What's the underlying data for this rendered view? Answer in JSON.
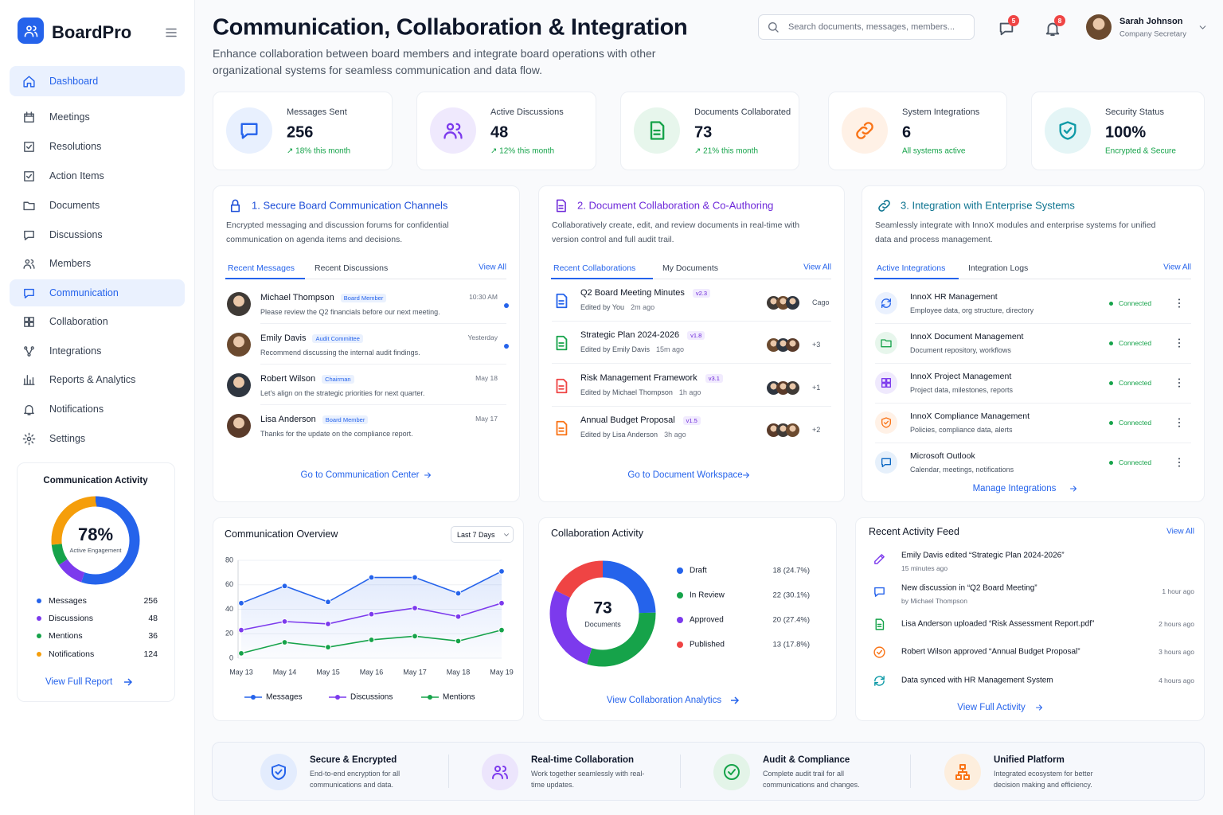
{
  "sidebar": {
    "brand": "BoardPro",
    "nav": [
      "Dashboard",
      "Meetings",
      "Resolutions",
      "Action Items",
      "Documents",
      "Discussions",
      "Members",
      "Communication",
      "Collaboration",
      "Integrations",
      "Reports & Analytics",
      "Notifications",
      "Settings"
    ]
  },
  "activity_widget": {
    "title": "Communication Activity",
    "center": "78%",
    "caption": "Active Engagement",
    "items": [
      {
        "name": "Messages",
        "value": 256,
        "color": "#2563eb"
      },
      {
        "name": "Discussions",
        "value": 48,
        "color": "#7c3aed"
      },
      {
        "name": "Mentions",
        "value": 36,
        "color": "#16a34a"
      },
      {
        "name": "Notifications",
        "value": 124,
        "color": "#f59e0b"
      }
    ],
    "link": "View Full Report"
  },
  "header": {
    "title": "Communication, Collaboration & Integration",
    "subtitle": "Enhance collaboration between board members and integrate board operations with other organizational systems for seamless communication and data flow.",
    "search": "Search documents, messages, members...",
    "message_badge": 5,
    "alert_badge": 8,
    "user": "Sarah Johnson",
    "role": "Company Secretary"
  },
  "stats": [
    {
      "label": "Messages Sent",
      "value": 256,
      "note": "↗ 18% this month"
    },
    {
      "label": "Active Discussions",
      "value": 48,
      "note": "↗ 12% this month"
    },
    {
      "label": "Documents Collaborated",
      "value": 73,
      "note": "↗ 21% this month"
    },
    {
      "label": "System Integrations",
      "value": 6,
      "note": "All systems active"
    },
    {
      "label": "Security Status",
      "value": "100%",
      "note": "Encrypted & Secure"
    }
  ],
  "communication_panel": {
    "title": "1. Secure Board Communication Channels",
    "description": "Encrypted messaging and discussion forums for confidential communication on agenda items and decisions.",
    "tabs": [
      "Recent Messages",
      "Recent Discussions"
    ],
    "view_all": "View All",
    "items": [
      {
        "name": "Michael Thompson",
        "tag": "Board Member",
        "message": "Please review the Q2 financials before our next meeting.",
        "time": "10:30 AM"
      },
      {
        "name": "Emily Davis",
        "tag": "Audit Committee",
        "message": "Recommend discussing the internal audit findings.",
        "time": "Yesterday"
      },
      {
        "name": "Robert Wilson",
        "tag": "Chairman",
        "message": "Let's align on the strategic priorities for next quarter.",
        "time": "May 18"
      },
      {
        "name": "Lisa Anderson",
        "tag": "Board Member",
        "message": "Thanks for the update on the compliance report.",
        "time": "May 17"
      }
    ],
    "link": "Go to Communication Center"
  },
  "document_panel": {
    "title": "2. Document Collaboration & Co-Authoring",
    "description": "Collaboratively create, edit, and review documents in real-time with version control and full audit trail.",
    "tabs": [
      "Recent Collaborations",
      "My Documents"
    ],
    "view_all": "View All",
    "items": [
      {
        "title": "Q2 Board Meeting Minutes",
        "version": "v2.3",
        "editor": "Edited by You",
        "time": "2m ago",
        "extra": "Cago"
      },
      {
        "title": "Strategic Plan 2024-2026",
        "version": "v1.8",
        "editor": "Edited by Emily Davis",
        "time": "15m ago",
        "extra": "+3"
      },
      {
        "title": "Risk Management Framework",
        "version": "v3.1",
        "editor": "Edited by Michael Thompson",
        "time": "1h ago",
        "extra": "+1"
      },
      {
        "title": "Annual Budget Proposal",
        "version": "v1.5",
        "editor": "Edited by Lisa Anderson",
        "time": "3h ago",
        "extra": "+2"
      }
    ],
    "link": "Go to Document Workspace"
  },
  "integration_panel": {
    "title": "3. Integration with Enterprise Systems",
    "description": "Seamlessly integrate with InnoX modules and enterprise systems for unified data and process management.",
    "tabs": [
      "Active Integrations",
      "Integration Logs"
    ],
    "view_all": "View All",
    "items": [
      {
        "name": "InnoX HR Management",
        "description": "Employee data, org structure, directory",
        "status": "Connected"
      },
      {
        "name": "InnoX Document Management",
        "description": "Document repository, workflows",
        "status": "Connected"
      },
      {
        "name": "InnoX Project Management",
        "description": "Project data, milestones, reports",
        "status": "Connected"
      },
      {
        "name": "InnoX Compliance Management",
        "description": "Policies, compliance data, alerts",
        "status": "Connected"
      },
      {
        "name": "Microsoft Outlook",
        "description": "Calendar, meetings, notifications",
        "status": "Connected"
      }
    ],
    "link": "Manage Integrations"
  },
  "communication_overview": {
    "title": "Communication Overview",
    "range": "Last 7 Days",
    "chart": {
      "type": "line",
      "categories": [
        "May 13",
        "May 14",
        "May 15",
        "May 16",
        "May 17",
        "May 18",
        "May 19"
      ],
      "series": [
        {
          "name": "Messages",
          "color": "#2563eb",
          "values": [
            45,
            59,
            46,
            66,
            66,
            53,
            71
          ]
        },
        {
          "name": "Discussions",
          "color": "#7c3aed",
          "values": [
            23,
            30,
            28,
            36,
            41,
            34,
            45
          ]
        },
        {
          "name": "Mentions",
          "color": "#16a34a",
          "values": [
            4,
            13,
            9,
            15,
            18,
            14,
            23
          ]
        }
      ],
      "ylim": [
        0,
        80
      ],
      "yticks": [
        0,
        20,
        40,
        60,
        80
      ],
      "grid": true
    }
  },
  "collaboration_activity": {
    "title": "Collaboration Activity",
    "center": 73,
    "caption": "Documents",
    "chart": {
      "type": "pie",
      "categories": [
        "Draft",
        "In Review",
        "Approved",
        "Published"
      ],
      "values": [
        18,
        22,
        20,
        13
      ],
      "value_labels": [
        "18 (24.7%)",
        "22 (30.1%)",
        "20 (27.4%)",
        "13 (17.8%)"
      ],
      "colors": [
        "#2563eb",
        "#16a34a",
        "#7c3aed",
        "#ef4444"
      ]
    },
    "link": "View Collaboration Analytics"
  },
  "activity_feed": {
    "title": "Recent Activity Feed",
    "view_all": "View All",
    "items": [
      {
        "text": "Emily Davis edited “Strategic Plan 2024-2026”",
        "sub": "15 minutes ago"
      },
      {
        "text": "New discussion in “Q2 Board Meeting”",
        "sub": "by Michael Thompson",
        "time": "1 hour ago"
      },
      {
        "text": "Lisa Anderson uploaded “Risk Assessment Report.pdf”",
        "time": "2 hours ago"
      },
      {
        "text": "Robert Wilson approved “Annual Budget Proposal”",
        "time": "3 hours ago"
      },
      {
        "text": "Data synced with HR Management System",
        "time": "4 hours ago"
      }
    ],
    "link": "View Full Activity"
  },
  "features": [
    {
      "title": "Secure & Encrypted",
      "description": "End-to-end encryption for all communications and data."
    },
    {
      "title": "Real-time Collaboration",
      "description": "Work together seamlessly with real-time updates."
    },
    {
      "title": "Audit & Compliance",
      "description": "Complete audit trail for all communications and changes."
    },
    {
      "title": "Unified Platform",
      "description": "Integrated ecosystem for better decision making and efficiency."
    }
  ]
}
